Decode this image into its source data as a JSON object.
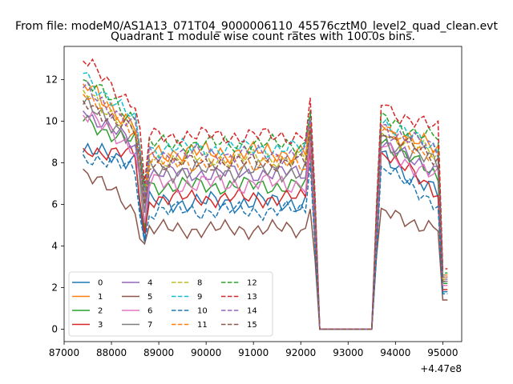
{
  "chart_data": {
    "type": "line",
    "suptitle": "From file: modeM0/AS1A13_071T04_9000006110_45576cztM0_level2_quad_clean.evt",
    "title": "Quadrant 1 module wise count rates with 100.0s bins.",
    "xlabel": "",
    "ylabel": "",
    "x_offset_label": "+4.47e8",
    "xlim": [
      87000,
      95400
    ],
    "ylim": [
      -0.6,
      13.6
    ],
    "xticks": [
      "87000",
      "88000",
      "89000",
      "90000",
      "91000",
      "92000",
      "93000",
      "94000",
      "95000"
    ],
    "yticks": [
      "0",
      "2",
      "4",
      "6",
      "8",
      "10",
      "12"
    ],
    "legend_position": "lower left",
    "legend_columns": 4,
    "series": [
      {
        "name": "0",
        "color": "#1f77b4",
        "style": "solid",
        "base": 6.1,
        "start": 8.5,
        "r1": 8.2,
        "r2": 6.3,
        "dip": 4.2,
        "end": 1.8,
        "amp": 0.35
      },
      {
        "name": "1",
        "color": "#ff7f0e",
        "style": "solid",
        "base": 8.5,
        "start": 11.8,
        "r1": 9.6,
        "r2": 8.5,
        "dip": 6.5,
        "end": 2.5,
        "amp": 0.35
      },
      {
        "name": "2",
        "color": "#2ca02c",
        "style": "solid",
        "base": 6.9,
        "start": 10.0,
        "r1": 8.9,
        "r2": 7.2,
        "dip": 4.8,
        "end": 2.2,
        "amp": 0.3
      },
      {
        "name": "3",
        "color": "#d62728",
        "style": "solid",
        "base": 6.3,
        "start": 8.7,
        "r1": 8.3,
        "r2": 6.5,
        "dip": 4.6,
        "end": 1.9,
        "amp": 0.3
      },
      {
        "name": "4",
        "color": "#9467bd",
        "style": "solid",
        "base": 7.5,
        "start": 10.5,
        "r1": 8.7,
        "r2": 7.6,
        "dip": 5.6,
        "end": 2.4,
        "amp": 0.3
      },
      {
        "name": "5",
        "color": "#8c564b",
        "style": "solid",
        "base": 4.8,
        "start": 7.7,
        "r1": 5.5,
        "r2": 4.8,
        "dip": 4.1,
        "end": 1.4,
        "amp": 0.3
      },
      {
        "name": "6",
        "color": "#e377c2",
        "style": "solid",
        "base": 7.0,
        "start": 10.3,
        "r1": 8.6,
        "r2": 7.1,
        "dip": 5.1,
        "end": 2.1,
        "amp": 0.35
      },
      {
        "name": "7",
        "color": "#7f7f7f",
        "style": "solid",
        "base": 7.6,
        "start": 10.8,
        "r1": 9.0,
        "r2": 7.8,
        "dip": 5.6,
        "end": 2.3,
        "amp": 0.35
      },
      {
        "name": "8",
        "color": "#bcbd22",
        "style": "dashed",
        "base": 8.2,
        "start": 11.5,
        "r1": 9.3,
        "r2": 8.3,
        "dip": 6.4,
        "end": 2.4,
        "amp": 0.3
      },
      {
        "name": "9",
        "color": "#17becf",
        "style": "dashed",
        "base": 8.7,
        "start": 12.3,
        "r1": 9.8,
        "r2": 8.6,
        "dip": 6.4,
        "end": 2.6,
        "amp": 0.3
      },
      {
        "name": "10",
        "color": "#1f77b4",
        "style": "dashed",
        "base": 5.7,
        "start": 8.4,
        "r1": 7.6,
        "r2": 5.9,
        "dip": 4.2,
        "end": 1.7,
        "amp": 0.3
      },
      {
        "name": "11",
        "color": "#ff7f0e",
        "style": "dashed",
        "base": 8.0,
        "start": 11.3,
        "r1": 9.4,
        "r2": 8.2,
        "dip": 6.2,
        "end": 2.6,
        "amp": 0.3
      },
      {
        "name": "12",
        "color": "#2ca02c",
        "style": "dashed",
        "base": 8.9,
        "start": 12.0,
        "r1": 10.0,
        "r2": 9.1,
        "dip": 6.8,
        "end": 2.7,
        "amp": 0.3
      },
      {
        "name": "13",
        "color": "#d62728",
        "style": "dashed",
        "base": 9.3,
        "start": 12.9,
        "r1": 10.6,
        "r2": 9.5,
        "dip": 7.0,
        "end": 2.9,
        "amp": 0.3
      },
      {
        "name": "14",
        "color": "#9467bd",
        "style": "dashed",
        "base": 8.4,
        "start": 11.6,
        "r1": 9.6,
        "r2": 8.5,
        "dip": 6.2,
        "end": 2.5,
        "amp": 0.3
      },
      {
        "name": "15",
        "color": "#8c564b",
        "style": "dashed",
        "base": 8.0,
        "start": 11.0,
        "r1": 9.3,
        "r2": 8.1,
        "dip": 6.0,
        "end": 2.3,
        "amp": 0.3
      }
    ]
  }
}
